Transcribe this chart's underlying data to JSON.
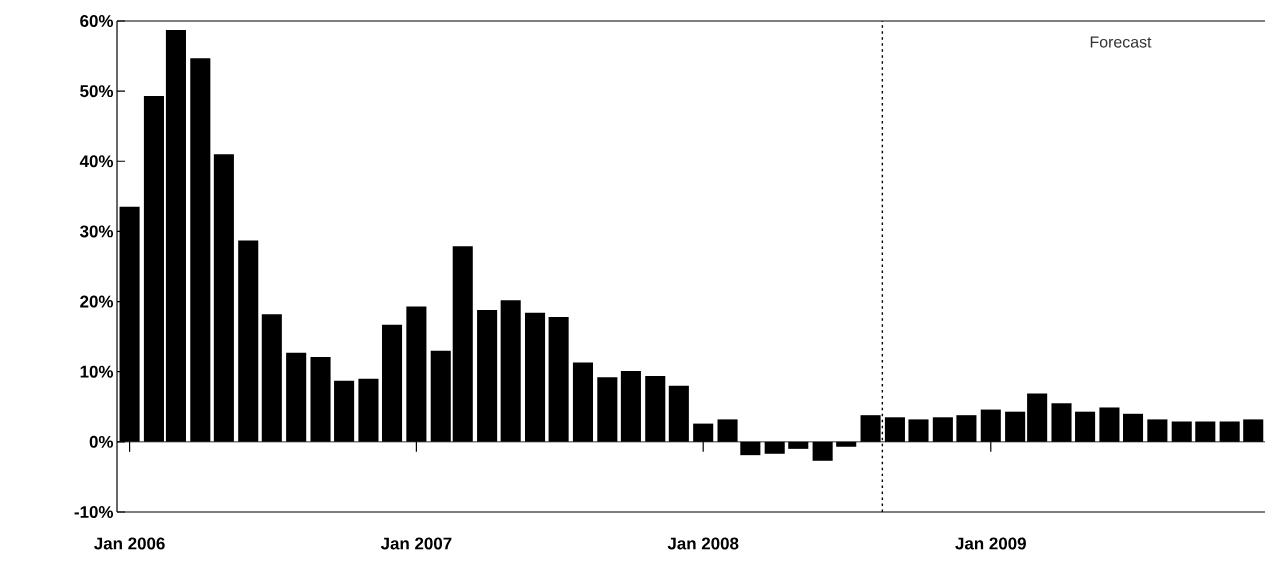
{
  "chart_data": {
    "type": "bar",
    "x": [
      "2006-01",
      "2006-02",
      "2006-03",
      "2006-04",
      "2006-05",
      "2006-06",
      "2006-07",
      "2006-08",
      "2006-09",
      "2006-10",
      "2006-11",
      "2006-12",
      "2007-01",
      "2007-02",
      "2007-03",
      "2007-04",
      "2007-05",
      "2007-06",
      "2007-07",
      "2007-08",
      "2007-09",
      "2007-10",
      "2007-11",
      "2007-12",
      "2008-01",
      "2008-02",
      "2008-03",
      "2008-04",
      "2008-05",
      "2008-06",
      "2008-07",
      "2008-08",
      "2008-09",
      "2008-10",
      "2008-11",
      "2008-12",
      "2009-01",
      "2009-02",
      "2009-03",
      "2009-04",
      "2009-05",
      "2009-06",
      "2009-07",
      "2009-08",
      "2009-09",
      "2009-10",
      "2009-11",
      "2009-12"
    ],
    "values": [
      33.5,
      49.3,
      58.7,
      54.7,
      41.0,
      28.7,
      18.2,
      12.7,
      12.1,
      8.7,
      9.0,
      16.7,
      19.3,
      13.0,
      27.9,
      18.8,
      20.2,
      18.4,
      17.8,
      11.3,
      9.2,
      10.1,
      9.4,
      8.0,
      2.6,
      3.2,
      -1.9,
      -1.7,
      -1.0,
      -2.7,
      -0.7,
      3.8,
      3.5,
      3.2,
      3.5,
      3.8,
      4.6,
      4.3,
      6.9,
      5.5,
      4.3,
      4.9,
      4.0,
      3.2,
      2.9,
      2.9,
      2.9,
      3.2
    ],
    "color": "#000000",
    "xlim": [
      "2005-12-16",
      "2009-12-16"
    ],
    "xticks": [
      {
        "value": "2006-01",
        "label": "Jan 2006"
      },
      {
        "value": "2007-01",
        "label": "Jan 2007"
      },
      {
        "value": "2008-01",
        "label": "Jan 2008"
      },
      {
        "value": "2009-01",
        "label": "Jan 2009"
      }
    ],
    "ylim": [
      -10,
      60
    ],
    "yticks": [
      {
        "value": -10,
        "label": "-10%"
      },
      {
        "value": 0,
        "label": "0%"
      },
      {
        "value": 10,
        "label": "10%"
      },
      {
        "value": 20,
        "label": "20%"
      },
      {
        "value": 30,
        "label": "30%"
      },
      {
        "value": 40,
        "label": "40%"
      },
      {
        "value": 50,
        "label": "50%"
      },
      {
        "value": 60,
        "label": "60%"
      }
    ],
    "ref_lines": [
      {
        "axis": "x",
        "value": "2008-08-16",
        "line_style": "dotted",
        "color": "#000000"
      }
    ],
    "annotations": [
      "Forecast"
    ]
  }
}
